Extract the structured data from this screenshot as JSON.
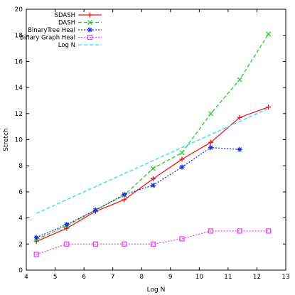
{
  "chart_data": {
    "type": "line",
    "xlabel": "Log N",
    "ylabel": "Stretch",
    "xlim": [
      4,
      13
    ],
    "ylim": [
      0,
      20
    ],
    "xticks": [
      4,
      5,
      6,
      7,
      8,
      9,
      10,
      11,
      12,
      13
    ],
    "yticks": [
      0,
      2,
      4,
      6,
      8,
      10,
      12,
      14,
      16,
      18,
      20
    ],
    "grid": false,
    "legend_position": "top-left",
    "series": [
      {
        "name": "SDASH",
        "color": "#e8191e",
        "line": "solid",
        "marker": "plus",
        "x": [
          4.35,
          5.4,
          6.4,
          7.4,
          8.4,
          9.4,
          10.4,
          11.4,
          12.4
        ],
        "y": [
          2.2,
          3.2,
          4.5,
          5.4,
          7.0,
          8.5,
          9.8,
          11.7,
          12.5
        ]
      },
      {
        "name": "DASH",
        "color": "#22cc22",
        "line": "dashed",
        "marker": "x",
        "x": [
          4.35,
          5.4,
          6.4,
          7.4,
          8.4,
          9.4,
          10.4,
          11.4,
          12.4
        ],
        "y": [
          2.35,
          3.4,
          4.6,
          5.75,
          7.8,
          9.0,
          12.0,
          14.6,
          18.1
        ]
      },
      {
        "name": "BinaryTree Heal",
        "color": "#2233dd",
        "line": "dotted",
        "marker": "star",
        "x": [
          4.35,
          5.4,
          6.4,
          7.4,
          8.4,
          9.4,
          10.4,
          11.4
        ],
        "y": [
          2.5,
          3.5,
          4.6,
          5.8,
          6.5,
          7.9,
          9.4,
          9.25
        ]
      },
      {
        "name": "Binary Graph Heal",
        "color": "#ee44ee",
        "line": "dotted",
        "marker": "square",
        "x": [
          4.35,
          5.4,
          6.4,
          7.4,
          8.4,
          9.4,
          10.4,
          11.4,
          12.4
        ],
        "y": [
          1.2,
          2.0,
          2.0,
          2.0,
          2.0,
          2.4,
          3.0,
          3.0,
          3.0
        ]
      },
      {
        "name": "Log N",
        "color": "#22ddee",
        "line": "dashed",
        "marker": "none",
        "x": [
          4.35,
          12.4
        ],
        "y": [
          4.35,
          12.4
        ]
      }
    ]
  }
}
